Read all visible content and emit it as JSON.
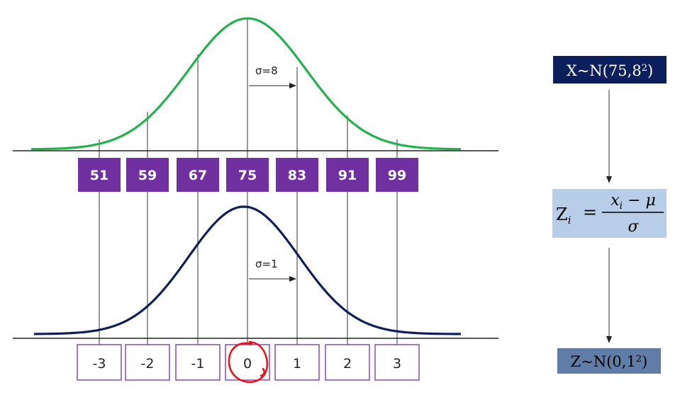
{
  "top_distribution": {
    "sigma_label": "σ=8",
    "values": [
      "51",
      "59",
      "67",
      "75",
      "83",
      "91",
      "99"
    ],
    "color": "#22b24c"
  },
  "bottom_distribution": {
    "sigma_label": "σ=1",
    "values": [
      "-3",
      "-2",
      "-1",
      "0",
      "1",
      "2",
      "3"
    ],
    "color": "#0f1f5c"
  },
  "box_color": "#7030a0",
  "highlight": {
    "value": "0",
    "color": "#e8141c"
  },
  "flow": {
    "top_box": {
      "prefix": "X~N(75,8",
      "exponent": "2",
      "suffix": ")",
      "bg": "#0a1f5c",
      "fg": "#ffffff"
    },
    "middle_box": {
      "lhs": "Z",
      "lhs_sub": "i",
      "equals": "=",
      "num_var": "x",
      "num_sub": "i",
      "num_rest": " − μ",
      "den": "σ",
      "bg": "#b8cde8",
      "fg": "#000000"
    },
    "bottom_box": {
      "prefix": "Z~N(0,1",
      "exponent": "2",
      "suffix": ")",
      "bg": "#5f7da6",
      "fg": "#000000"
    }
  }
}
